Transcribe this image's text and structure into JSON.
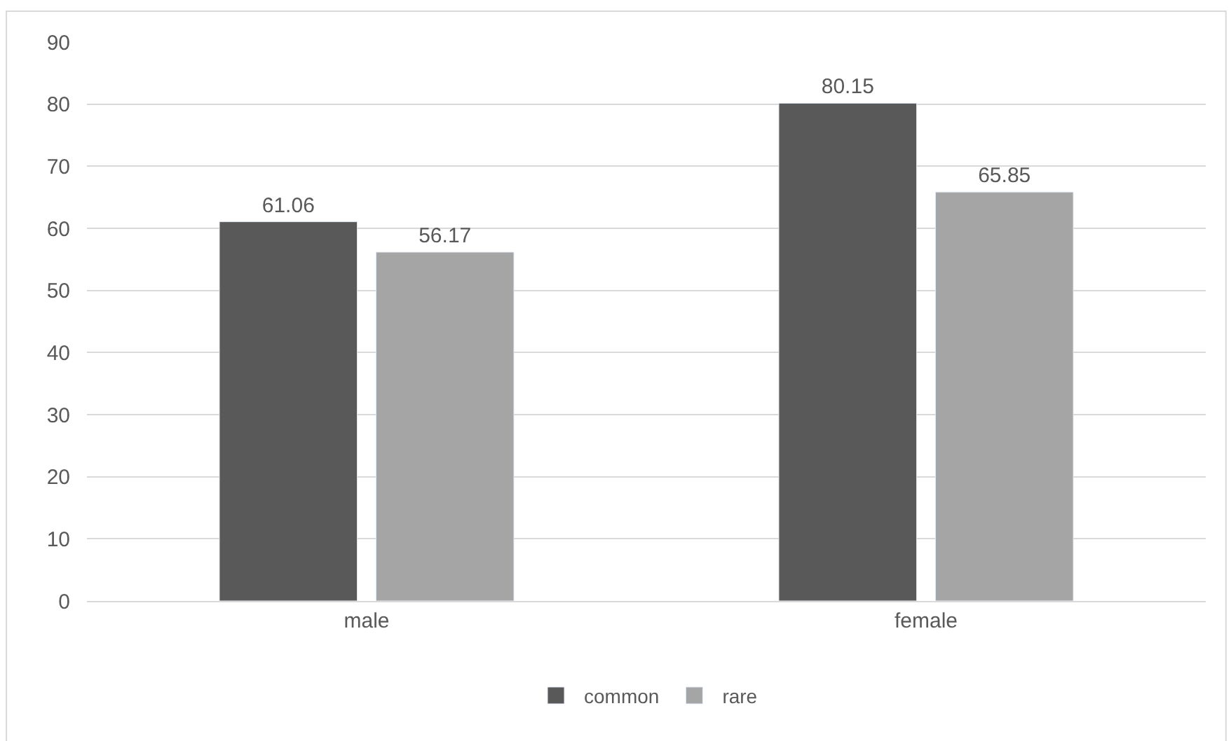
{
  "chart_data": {
    "type": "bar",
    "categories": [
      "male",
      "female"
    ],
    "series": [
      {
        "name": "common",
        "color": "#595959",
        "values": [
          61.06,
          80.15
        ]
      },
      {
        "name": "rare",
        "color": "#a5a5a5",
        "values": [
          56.17,
          65.85
        ]
      }
    ],
    "ylim": [
      0,
      90
    ],
    "yticks": [
      0,
      10,
      20,
      30,
      40,
      50,
      60,
      70,
      80,
      90
    ],
    "grid": "y",
    "legend": "bottom",
    "data_labels": true
  }
}
